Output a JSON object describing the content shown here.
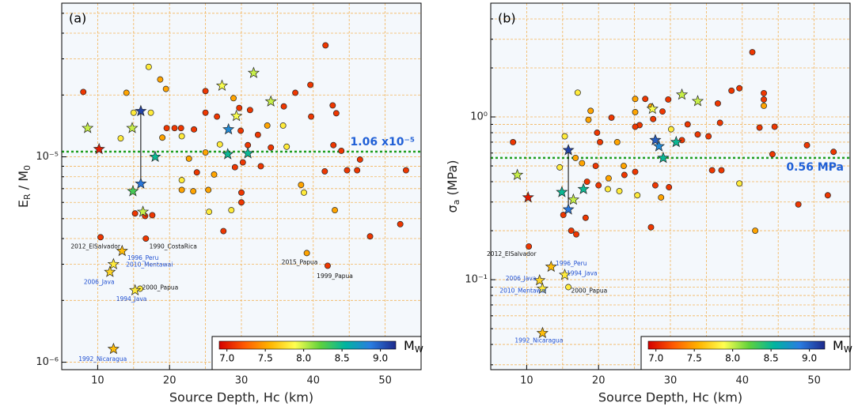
{
  "chart_data": [
    {
      "type": "scatter",
      "panel_label": "(a)",
      "xlabel": "Source Depth, Hc (km)",
      "ylabel": [
        {
          "text": "E"
        },
        {
          "text": "R",
          "sub": true
        },
        {
          "text": " / M"
        },
        {
          "text": "0",
          "sub": true
        }
      ],
      "xlim": [
        5,
        55
      ],
      "ylim": [
        9.2e-07,
        5.6e-05
      ],
      "log_y": true,
      "grid": true,
      "xticks": [
        10,
        20,
        30,
        40,
        50
      ],
      "minor_xticks": [
        15,
        25,
        35,
        45
      ],
      "yticks": [
        {
          "value": 1e-06,
          "label": "10⁻⁶"
        },
        {
          "value": 1e-05,
          "label": "10⁻⁵"
        }
      ],
      "minor_yticks": [
        2e-06,
        3e-06,
        4e-06,
        5e-06,
        6e-06,
        7e-06,
        8e-06,
        9e-06,
        2e-05,
        3e-05,
        4e-05,
        5e-05
      ],
      "reference": {
        "value": 1.06e-05,
        "label": "1.06 x10⁻⁵",
        "color": "#1f9e1f",
        "label_color": "#1f5fd6"
      },
      "series": [
        {
          "marker": "circle",
          "x": [
            8.0,
            14.0,
            17.1,
            18.7,
            19.5,
            19.6,
            20.7,
            21.6,
            21.7,
            19.0,
            15.0,
            17.4,
            13.2,
            15.2,
            16.6,
            17.6,
            10.4,
            16.7,
            15.9,
            39.1,
            42.0,
            41.7,
            25.0,
            25.0,
            23.4,
            26.6,
            28.9,
            29.7,
            29.9,
            31.2,
            32.3,
            33.6,
            35.8,
            35.9,
            37.5,
            39.6,
            39.7,
            42.7,
            43.2,
            42.8,
            43.9,
            41.6,
            44.7,
            46.1,
            46.5,
            52.9,
            38.3,
            38.7,
            43.0,
            47.9,
            52.1,
            36.3,
            34.1,
            32.7,
            30.2,
            30.0,
            30.0,
            27.5,
            28.6,
            25.5,
            25.4,
            23.3,
            21.7,
            21.7,
            22.7,
            23.8,
            26.2,
            29.1,
            27.0,
            25.0,
            30.9
          ],
          "values": [
            2.07e-05,
            2.05e-05,
            2.74e-05,
            2.38e-05,
            2.14e-05,
            1.38e-05,
            1.38e-05,
            1.38e-05,
            1.26e-05,
            1.24e-05,
            1.64e-05,
            1.64e-05,
            1.23e-05,
            5.3e-06,
            5.15e-06,
            5.2e-06,
            4.06e-06,
            4e-06,
            2.28e-06,
            3.4e-06,
            2.95e-06,
            3.49e-05,
            2.09e-05,
            1.64e-05,
            1.36e-05,
            1.57e-05,
            1.93e-05,
            1.73e-05,
            1.34e-05,
            1.69e-05,
            1.28e-05,
            1.42e-05,
            1.42e-05,
            1.76e-05,
            2.05e-05,
            2.24e-05,
            1.57e-05,
            1.78e-05,
            1.63e-05,
            1.14e-05,
            1.07e-05,
            8.5e-06,
            8.6e-06,
            8.6e-06,
            9.7e-06,
            8.6e-06,
            7.3e-06,
            6.7e-06,
            5.5e-06,
            4.1e-06,
            4.7e-06,
            1.12e-05,
            1.11e-05,
            9e-06,
            9.4e-06,
            6.7e-06,
            6e-06,
            4.35e-06,
            5.5e-06,
            5.4e-06,
            6.9e-06,
            6.8e-06,
            6.9e-06,
            7.7e-06,
            9.8e-06,
            8.4e-06,
            8.2e-06,
            8.9e-06,
            1.15e-05,
            1.05e-05,
            1.14e-05
          ],
          "mw": [
            7.1,
            7.5,
            7.8,
            7.5,
            7.5,
            7.1,
            7.1,
            7.1,
            7.8,
            7.5,
            7.8,
            7.8,
            7.8,
            7.1,
            7.1,
            7.1,
            7.1,
            7.1,
            7.8,
            7.5,
            7.1,
            7.1,
            7.1,
            7.1,
            7.1,
            7.1,
            7.5,
            7.1,
            7.1,
            7.1,
            7.1,
            7.5,
            7.8,
            7.1,
            7.1,
            7.1,
            7.1,
            7.1,
            7.1,
            7.1,
            7.1,
            7.1,
            7.1,
            7.1,
            7.1,
            7.1,
            7.5,
            7.8,
            7.5,
            7.1,
            7.1,
            7.8,
            7.1,
            7.1,
            7.1,
            7.1,
            7.1,
            7.1,
            7.8,
            7.8,
            7.5,
            7.5,
            7.5,
            7.8,
            7.5,
            7.1,
            7.5,
            7.1,
            7.8,
            7.5,
            7.1
          ]
        },
        {
          "marker": "star",
          "x": [
            10.2,
            8.6,
            16.0,
            16.0,
            18.0,
            14.9,
            16.3,
            13.4,
            12.2,
            11.7,
            15.2,
            12.2,
            27.3,
            31.7,
            29.3,
            34.1,
            28.2,
            30.9,
            28.1,
            14.8
          ],
          "values": [
            1.09e-05,
            1.38e-05,
            1.67e-05,
            7.4e-06,
            1e-05,
            6.8e-06,
            5.4e-06,
            3.48e-06,
            3e-06,
            2.75e-06,
            2.24e-06,
            1.16e-06,
            2.22e-05,
            2.56e-05,
            1.58e-05,
            1.86e-05,
            1.36e-05,
            1.04e-05,
            1.03e-05,
            1.38e-05
          ],
          "mw": [
            7.0,
            8.0,
            9.1,
            8.9,
            8.5,
            8.3,
            8.0,
            7.6,
            7.8,
            7.7,
            7.8,
            7.6,
            7.9,
            8.0,
            7.9,
            8.0,
            8.8,
            8.5,
            8.5,
            8.0
          ]
        }
      ],
      "links": [
        {
          "x": [
            16.0,
            16.0
          ],
          "values": [
            1.67e-05,
            7.4e-06
          ]
        }
      ],
      "annotations": [
        {
          "text": "2012_ElSalvador",
          "x": 9.7,
          "y": 3.65e-06,
          "color": "#111"
        },
        {
          "text": "1990_CostaRica",
          "x": 20.5,
          "y": 3.65e-06,
          "color": "#111"
        },
        {
          "text": "1996_Peru",
          "x": 16.3,
          "y": 3.2e-06,
          "color": "#1f4fd1"
        },
        {
          "text": "2010_Mentawai",
          "x": 17.2,
          "y": 2.98e-06,
          "color": "#1f4fd1"
        },
        {
          "text": "2006_Java",
          "x": 10.2,
          "y": 2.45e-06,
          "color": "#1f4fd1"
        },
        {
          "text": "2000_Papua",
          "x": 18.7,
          "y": 2.3e-06,
          "color": "#111"
        },
        {
          "text": "1994_Java",
          "x": 14.7,
          "y": 2.02e-06,
          "color": "#1f4fd1"
        },
        {
          "text": "1992_Nicaragua",
          "x": 10.7,
          "y": 1.03e-06,
          "color": "#1f4fd1"
        },
        {
          "text": "2015_Papua",
          "x": 38.1,
          "y": 3.05e-06,
          "color": "#111"
        },
        {
          "text": "1999_Papua",
          "x": 43.0,
          "y": 2.62e-06,
          "color": "#111"
        }
      ],
      "colorbar": {
        "label": "M",
        "label_sub": "W",
        "clim": [
          6.9,
          9.2
        ],
        "ticks": [
          {
            "value": 7,
            "label": "7.0"
          },
          7.5,
          {
            "value": 8,
            "label": "8.0"
          },
          8.5,
          {
            "value": 9,
            "label": "9.0"
          }
        ],
        "colormap": [
          "#d40000",
          "#ff5a00",
          "#ffb400",
          "#ffff50",
          "#5fd23c",
          "#00b4a0",
          "#2a7de1",
          "#1e2a8c"
        ]
      }
    },
    {
      "type": "scatter",
      "panel_label": "(b)",
      "xlabel": "Source Depth, Hc (km)",
      "ylabel": [
        {
          "text": "σ"
        },
        {
          "text": "a",
          "sub": true
        },
        {
          "text": " (MPa)"
        }
      ],
      "xlim": [
        5,
        55
      ],
      "ylim": [
        0.028,
        5.0
      ],
      "log_y": true,
      "grid": true,
      "xticks": [
        10,
        20,
        30,
        40,
        50
      ],
      "minor_xticks": [
        15,
        25,
        35,
        45
      ],
      "yticks": [
        {
          "value": 0.1,
          "label": "10⁻¹"
        },
        {
          "value": 1,
          "label": "10⁰"
        }
      ],
      "minor_yticks": [
        0.03,
        0.04,
        0.05,
        0.06,
        0.07,
        0.08,
        0.09,
        0.2,
        0.3,
        0.4,
        0.5,
        0.6,
        0.7,
        0.8,
        0.9,
        2,
        3,
        4
      ],
      "reference": {
        "value": 0.56,
        "label": "0.56 MPa",
        "color": "#1f9e1f",
        "label_color": "#1f5fd6"
      },
      "series": [
        {
          "marker": "circle",
          "x": [
            8.1,
            10.3,
            15.8,
            15.1,
            16.2,
            16.9,
            18.2,
            17.1,
            18.6,
            18.9,
            20.2,
            19.8,
            15.3,
            14.6,
            16.8,
            17.7,
            18.4,
            20.0,
            21.3,
            21.8,
            22.6,
            23.5,
            23.6,
            25.1,
            25.1,
            25.1,
            25.7,
            25.1,
            26.5,
            27.3,
            27.6,
            28.9,
            29.7,
            30.1,
            31.6,
            32.4,
            33.8,
            35.3,
            36.6,
            36.9,
            38.5,
            39.6,
            41.4,
            43.0,
            43.0,
            43.0,
            42.4,
            44.5,
            44.2,
            49.0,
            52.7,
            51.9,
            47.8,
            41.8,
            39.6,
            37.1,
            35.8,
            29.8,
            27.9,
            28.7,
            27.3,
            25.4,
            22.9,
            21.4,
            19.6
          ],
          "values": [
            0.7,
            0.16,
            0.09,
            0.25,
            0.2,
            0.19,
            0.24,
            1.41,
            0.96,
            1.09,
            0.7,
            0.8,
            0.76,
            0.49,
            0.56,
            0.52,
            0.4,
            0.38,
            0.36,
            0.99,
            0.7,
            0.5,
            0.44,
            0.46,
            1.29,
            1.07,
            0.89,
            0.87,
            1.29,
            1.16,
            0.97,
            1.08,
            1.28,
            0.84,
            0.72,
            0.9,
            0.78,
            0.76,
            1.21,
            0.92,
            1.45,
            1.5,
            2.5,
            1.4,
            1.28,
            1.17,
            0.86,
            0.87,
            0.59,
            0.67,
            0.61,
            0.33,
            0.29,
            0.2,
            0.39,
            0.47,
            0.47,
            0.37,
            0.38,
            0.32,
            0.21,
            0.33,
            0.35,
            0.42,
            0.5
          ],
          "mw": [
            7.1,
            7.1,
            7.8,
            7.1,
            7.1,
            7.1,
            7.1,
            7.8,
            7.5,
            7.5,
            7.1,
            7.1,
            7.8,
            7.8,
            7.5,
            7.5,
            7.1,
            7.1,
            7.8,
            7.1,
            7.5,
            7.5,
            7.1,
            7.1,
            7.5,
            7.5,
            7.1,
            7.1,
            7.1,
            7.5,
            7.1,
            7.1,
            7.1,
            7.8,
            7.1,
            7.1,
            7.1,
            7.1,
            7.1,
            7.1,
            7.1,
            7.1,
            7.1,
            7.1,
            7.1,
            7.5,
            7.1,
            7.1,
            7.1,
            7.1,
            7.1,
            7.1,
            7.1,
            7.5,
            7.8,
            7.1,
            7.1,
            7.1,
            7.1,
            7.5,
            7.1,
            7.8,
            7.8,
            7.5,
            7.1
          ]
        },
        {
          "marker": "star",
          "x": [
            10.2,
            8.7,
            13.4,
            11.8,
            15.3,
            12.2,
            12.2,
            15.8,
            15.8,
            14.9,
            16.5,
            17.9,
            27.9,
            27.5,
            31.6,
            33.8,
            30.8,
            29.0,
            28.4
          ],
          "values": [
            0.32,
            0.44,
            0.12,
            0.099,
            0.107,
            0.088,
            0.047,
            0.625,
            0.27,
            0.345,
            0.31,
            0.36,
            0.72,
            1.12,
            1.37,
            1.25,
            0.7,
            0.56,
            0.66
          ],
          "mw": [
            7.0,
            8.0,
            7.6,
            7.7,
            7.8,
            7.8,
            7.6,
            9.1,
            8.9,
            8.5,
            8.0,
            8.5,
            9.0,
            7.9,
            8.0,
            8.0,
            8.5,
            8.5,
            8.8
          ]
        }
      ],
      "links": [
        {
          "x": [
            15.8,
            15.8
          ],
          "values": [
            0.625,
            0.27
          ]
        }
      ],
      "annotations": [
        {
          "text": "2012_ElSalvador",
          "x": 7.9,
          "y": 0.143,
          "color": "#111"
        },
        {
          "text": "1996_Peru",
          "x": 16.2,
          "y": 0.125,
          "color": "#1f4fd1"
        },
        {
          "text": "2006_Java",
          "x": 9.2,
          "y": 0.101,
          "color": "#1f4fd1"
        },
        {
          "text": "1994_Java",
          "x": 17.7,
          "y": 0.109,
          "color": "#1f4fd1"
        },
        {
          "text": "2010_Mentawai",
          "x": 9.5,
          "y": 0.085,
          "color": "#1f4fd1"
        },
        {
          "text": "2000_Papua",
          "x": 18.7,
          "y": 0.085,
          "color": "#111"
        },
        {
          "text": "1992_Nicaragua",
          "x": 11.7,
          "y": 0.042,
          "color": "#1f4fd1"
        }
      ],
      "colorbar": {
        "label": "M",
        "label_sub": "W",
        "clim": [
          6.9,
          9.2
        ],
        "ticks": [
          {
            "value": 7,
            "label": "7.0"
          },
          7.5,
          {
            "value": 8,
            "label": "8.0"
          },
          8.5,
          {
            "value": 9,
            "label": "9.0"
          }
        ],
        "colormap": [
          "#d40000",
          "#ff5a00",
          "#ffb400",
          "#ffff50",
          "#5fd23c",
          "#00b4a0",
          "#2a7de1",
          "#1e2a8c"
        ]
      }
    }
  ]
}
